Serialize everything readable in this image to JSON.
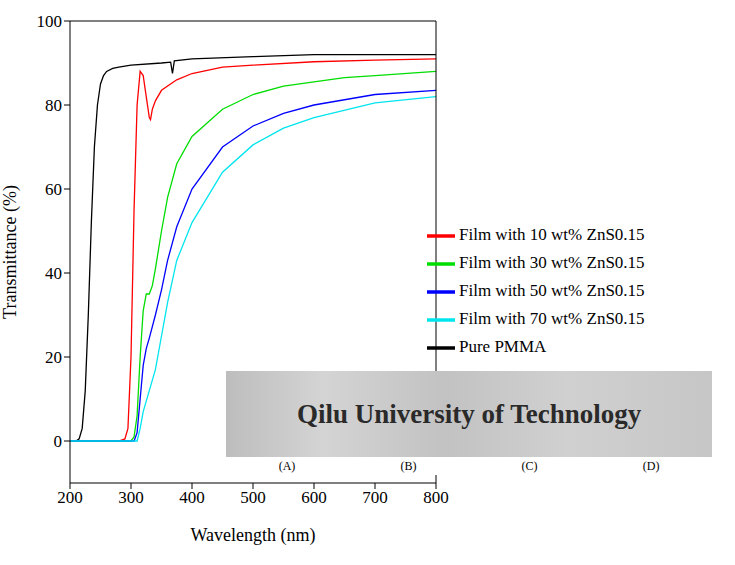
{
  "chart_data": {
    "type": "line",
    "x_label": "Wavelength (nm)",
    "y_label": "Transmittance (%)",
    "xlim": [
      200,
      800
    ],
    "xticks": [
      200,
      300,
      400,
      500,
      600,
      700,
      800
    ],
    "ylim": [
      -10,
      100
    ],
    "yticks": [
      0,
      20,
      40,
      60,
      80,
      100
    ],
    "legend": "right",
    "grid": false,
    "annotations": [
      "Qilu University of Technology",
      "(A)",
      "(B)",
      "(C)",
      "(D)"
    ],
    "series": [
      {
        "name": "Pure PMMA",
        "color": "#000000",
        "x": [
          200,
          210,
          215,
          220,
          225,
          230,
          235,
          240,
          245,
          250,
          255,
          260,
          270,
          280,
          300,
          350,
          365,
          368,
          371,
          400,
          500,
          600,
          700,
          800
        ],
        "values": [
          0,
          0,
          0.5,
          3,
          12,
          30,
          52,
          70,
          80,
          85,
          87,
          88,
          88.7,
          89,
          89.5,
          90,
          90.2,
          87.5,
          90.5,
          91,
          91.5,
          92,
          92,
          92
        ]
      },
      {
        "name": "Film with 10 wt% ZnS0.15",
        "color": "#ff0000",
        "x": [
          200,
          280,
          290,
          295,
          300,
          305,
          310,
          315,
          320,
          325,
          330,
          332,
          335,
          340,
          350,
          375,
          400,
          450,
          500,
          600,
          700,
          800
        ],
        "values": [
          0,
          0,
          0.5,
          3,
          20,
          55,
          80,
          88,
          87,
          82,
          77,
          76.5,
          79,
          81,
          83.5,
          86,
          87.5,
          89,
          89.5,
          90.3,
          90.7,
          91
        ]
      },
      {
        "name": "Film with 30 wt% ZnS0.15",
        "color": "#00dd00",
        "x": [
          200,
          300,
          305,
          310,
          315,
          320,
          325,
          330,
          335,
          340,
          350,
          360,
          375,
          400,
          450,
          500,
          550,
          600,
          650,
          700,
          800
        ],
        "values": [
          0,
          0,
          1,
          6,
          20,
          31,
          35,
          35,
          37,
          41,
          50,
          58,
          66,
          72.5,
          79,
          82.5,
          84.5,
          85.5,
          86.5,
          87,
          88
        ]
      },
      {
        "name": "Film with 50 wt% ZnS0.15",
        "color": "#0000ff",
        "x": [
          200,
          305,
          310,
          315,
          320,
          325,
          330,
          340,
          350,
          360,
          375,
          400,
          450,
          500,
          550,
          600,
          700,
          800
        ],
        "values": [
          0,
          0,
          2,
          10,
          18,
          22,
          24.5,
          30,
          36,
          43,
          51,
          60,
          70,
          75,
          78,
          80,
          82.5,
          83.5
        ]
      },
      {
        "name": "Film with 70 wt% ZnS0.15",
        "color": "#00e5ee",
        "x": [
          200,
          310,
          315,
          320,
          330,
          340,
          350,
          360,
          375,
          400,
          450,
          500,
          550,
          600,
          700,
          800
        ],
        "values": [
          0,
          0,
          3,
          7,
          12,
          17,
          25,
          33,
          43,
          52,
          64,
          70.5,
          74.5,
          77,
          80.5,
          82
        ]
      }
    ]
  }
}
